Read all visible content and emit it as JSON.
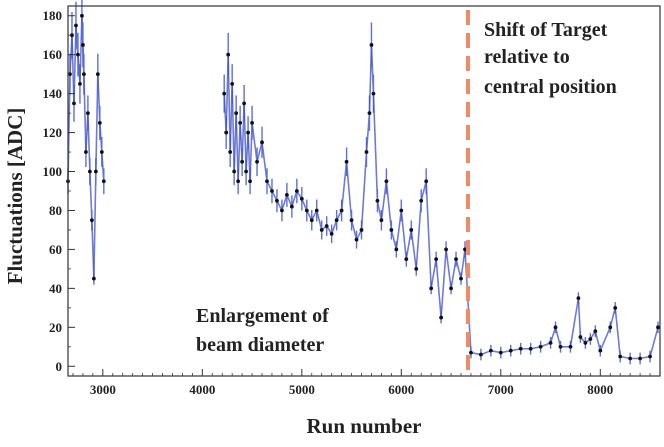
{
  "colors": {
    "series": "#3f4fc4",
    "marker": "#111111",
    "errorbar": "#5a6fe0",
    "divider": "#f08a66",
    "axis": "#333333",
    "text": "#222222"
  },
  "chart_data": {
    "type": "scatter",
    "title": "",
    "xlabel": "Run number",
    "ylabel": "Fluctuations [ADC]",
    "xlim": [
      2650,
      8600
    ],
    "ylim": [
      -5,
      185
    ],
    "xticks": [
      3000,
      4000,
      5000,
      6000,
      7000,
      8000
    ],
    "yticks": [
      0,
      20,
      40,
      60,
      80,
      100,
      120,
      140,
      160,
      180
    ],
    "grid": false,
    "legend": "none",
    "divider_x": 6670,
    "annotations": {
      "shift": [
        "Shift of Target",
        "relative to",
        "central position"
      ],
      "enlargement": [
        "Enlargement of",
        "beam diameter"
      ]
    },
    "series": [
      {
        "points": [
          [
            2650,
            95
          ],
          [
            2670,
            150
          ],
          [
            2690,
            170
          ],
          [
            2710,
            135
          ],
          [
            2730,
            175
          ],
          [
            2750,
            160
          ],
          [
            2770,
            145
          ],
          [
            2790,
            180
          ],
          [
            2800,
            165
          ],
          [
            2810,
            150
          ],
          [
            2830,
            110
          ],
          [
            2850,
            130
          ],
          [
            2870,
            100
          ],
          [
            2890,
            75
          ],
          [
            2910,
            45
          ],
          [
            2930,
            100
          ],
          [
            2950,
            150
          ],
          [
            2970,
            125
          ],
          [
            2990,
            110
          ],
          [
            3010,
            95
          ],
          [
            4220,
            140
          ],
          [
            4240,
            120
          ],
          [
            4260,
            160
          ],
          [
            4280,
            110
          ],
          [
            4300,
            145
          ],
          [
            4320,
            100
          ],
          [
            4340,
            130
          ],
          [
            4360,
            95
          ],
          [
            4380,
            125
          ],
          [
            4400,
            105
          ],
          [
            4420,
            135
          ],
          [
            4440,
            100
          ],
          [
            4460,
            120
          ],
          [
            4480,
            95
          ],
          [
            4500,
            125
          ],
          [
            4550,
            105
          ],
          [
            4600,
            115
          ],
          [
            4650,
            95
          ],
          [
            4700,
            90
          ],
          [
            4750,
            85
          ],
          [
            4800,
            80
          ],
          [
            4850,
            88
          ],
          [
            4900,
            82
          ],
          [
            4950,
            90
          ],
          [
            5000,
            86
          ],
          [
            5050,
            80
          ],
          [
            5100,
            75
          ],
          [
            5150,
            80
          ],
          [
            5200,
            70
          ],
          [
            5250,
            72
          ],
          [
            5300,
            68
          ],
          [
            5350,
            75
          ],
          [
            5400,
            80
          ],
          [
            5450,
            105
          ],
          [
            5500,
            75
          ],
          [
            5550,
            65
          ],
          [
            5600,
            70
          ],
          [
            5650,
            110
          ],
          [
            5680,
            130
          ],
          [
            5700,
            165
          ],
          [
            5720,
            140
          ],
          [
            5760,
            85
          ],
          [
            5800,
            75
          ],
          [
            5850,
            95
          ],
          [
            5900,
            70
          ],
          [
            5950,
            60
          ],
          [
            6000,
            80
          ],
          [
            6050,
            55
          ],
          [
            6100,
            70
          ],
          [
            6150,
            50
          ],
          [
            6200,
            85
          ],
          [
            6250,
            95
          ],
          [
            6300,
            40
          ],
          [
            6350,
            55
          ],
          [
            6400,
            25
          ],
          [
            6450,
            60
          ],
          [
            6500,
            40
          ],
          [
            6550,
            55
          ],
          [
            6600,
            45
          ],
          [
            6640,
            60
          ],
          [
            6700,
            7
          ],
          [
            6800,
            6
          ],
          [
            6900,
            8
          ],
          [
            7000,
            7
          ],
          [
            7100,
            8
          ],
          [
            7200,
            9
          ],
          [
            7300,
            9
          ],
          [
            7400,
            10
          ],
          [
            7500,
            12
          ],
          [
            7550,
            20
          ],
          [
            7600,
            10
          ],
          [
            7700,
            10
          ],
          [
            7780,
            35
          ],
          [
            7800,
            15
          ],
          [
            7850,
            12
          ],
          [
            7900,
            14
          ],
          [
            7950,
            18
          ],
          [
            8000,
            8
          ],
          [
            8100,
            20
          ],
          [
            8150,
            30
          ],
          [
            8200,
            5
          ],
          [
            8300,
            4
          ],
          [
            8400,
            4
          ],
          [
            8500,
            5
          ],
          [
            8580,
            20
          ]
        ]
      }
    ]
  }
}
